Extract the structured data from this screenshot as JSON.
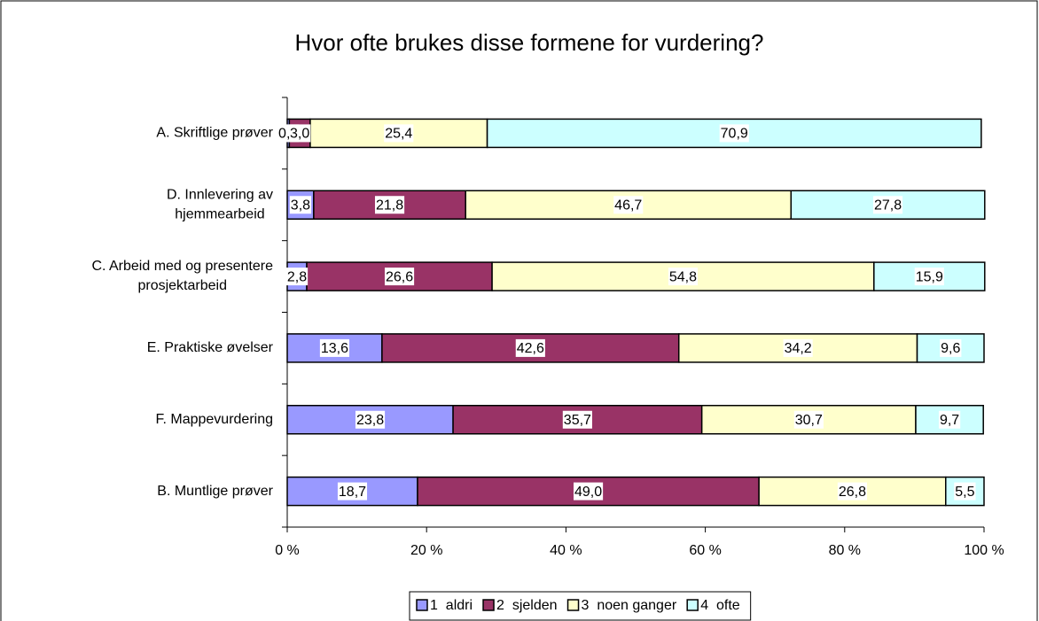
{
  "chart_data": {
    "type": "stacked-barh",
    "title": "Hvor ofte brukes disse formene for vurdering?",
    "categories": [
      "A. Skriftlige prøver",
      "D. Innlevering av\nhjemmearbeid",
      "C. Arbeid med og presentere\nprosjektarbeid",
      "E. Praktiske øvelser",
      "F. Mappevurdering",
      "B. Muntlige prøver"
    ],
    "series": [
      {
        "name": "1  aldri",
        "color": "#9999ff",
        "values": [
          0.3,
          3.8,
          2.8,
          13.6,
          23.8,
          18.7
        ],
        "value_labels": [
          "0,3",
          "3,8",
          "2,8",
          "13,6",
          "23,8",
          "18,7"
        ]
      },
      {
        "name": "2  sjelden",
        "color": "#993366",
        "values": [
          3.0,
          21.8,
          26.6,
          42.6,
          35.7,
          49.0
        ],
        "value_labels": [
          "3,0",
          "21,8",
          "26,6",
          "42,6",
          "35,7",
          "49,0"
        ]
      },
      {
        "name": "3  noen ganger",
        "color": "#ffffcc",
        "values": [
          25.4,
          46.7,
          54.8,
          34.2,
          30.7,
          26.8
        ],
        "value_labels": [
          "25,4",
          "46,7",
          "54,8",
          "34,2",
          "30,7",
          "26,8"
        ]
      },
      {
        "name": "4  ofte",
        "color": "#ccffff",
        "values": [
          70.9,
          27.8,
          15.9,
          9.6,
          9.7,
          5.5
        ],
        "value_labels": [
          "70,9",
          "27,8",
          "15,9",
          "9,6",
          "9,7",
          "5,5"
        ]
      }
    ],
    "xlim": [
      0,
      100
    ],
    "xticks": [
      {
        "value": 0,
        "label": "0 %"
      },
      {
        "value": 20,
        "label": "20 %"
      },
      {
        "value": 40,
        "label": "40 %"
      },
      {
        "value": 60,
        "label": "60 %"
      },
      {
        "value": 80,
        "label": "80 %"
      },
      {
        "value": 100,
        "label": "100 %"
      }
    ],
    "legend": "bottom"
  }
}
